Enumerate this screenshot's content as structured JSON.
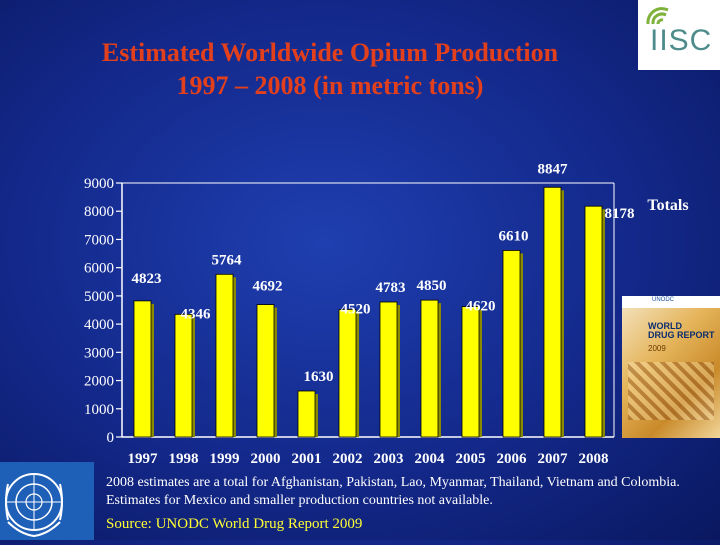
{
  "title_lines": [
    "Estimated Worldwide Opium Production",
    "1997 – 2008 (in metric tons)"
  ],
  "logo": {
    "text": "IISC",
    "icon": "iisc-logo-icon"
  },
  "report_cover": {
    "title_line1": "WORLD",
    "title_line2": "DRUG REPORT",
    "year": "2009",
    "org": "UNODC",
    "icon": "world-drug-report-cover-icon"
  },
  "note": "2008 estimates are a total for Afghanistan, Pakistan, Lao, Myanmar, Thailand, Vietnam and Colombia. Estimates for Mexico and smaller production countries not available.",
  "source": "Source:  UNODC World Drug Report 2009",
  "emblem_icon": "un-emblem-icon",
  "colors": {
    "bar": "#ffff00",
    "bar_shadow": "#8a8a00",
    "title": "#e2401c",
    "axis_text": "#ffffff",
    "source": "#ffff33"
  },
  "chart_data": {
    "type": "bar",
    "title": "",
    "categories": [
      "1997",
      "1998",
      "1999",
      "2000",
      "2001",
      "2002",
      "2003",
      "2004",
      "2005",
      "2006",
      "2007",
      "2008"
    ],
    "values": [
      4823,
      4346,
      5764,
      4692,
      1630,
      4520,
      4783,
      4850,
      4620,
      6610,
      8847,
      8178
    ],
    "value_labels": [
      "4823",
      "4346",
      "5764",
      "4692",
      "1630",
      "4520",
      "4783",
      "4850",
      "4620",
      "6610",
      "8847",
      "8178"
    ],
    "yticks": [
      "0",
      "1000",
      "2000",
      "3000",
      "4000",
      "5000",
      "6000",
      "7000",
      "8000",
      "9000"
    ],
    "ylim": [
      0,
      9000
    ],
    "xlabel": "",
    "ylabel": "",
    "legend": "Totals",
    "legend_position": "right"
  }
}
